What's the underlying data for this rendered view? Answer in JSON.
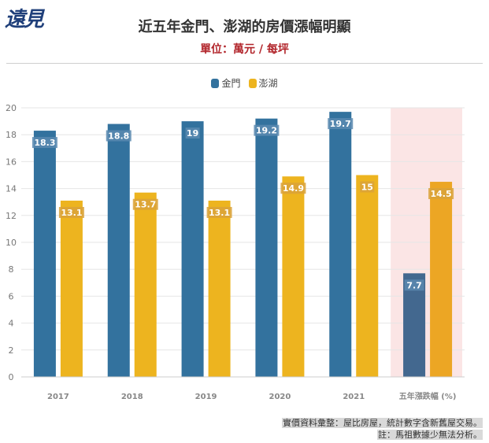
{
  "logo": {
    "text": "遠見"
  },
  "header": {
    "title": "近五年金門、澎湖的房價漲幅明顯",
    "subtitle": "單位：萬元 / 每坪"
  },
  "legend": [
    {
      "name": "金門",
      "color": "#33729e"
    },
    {
      "name": "澎湖",
      "color": "#edb41f"
    }
  ],
  "chart_data": {
    "type": "bar",
    "categories": [
      "2017",
      "2018",
      "2019",
      "2020",
      "2021",
      "五年漲跌幅 (%)"
    ],
    "series": [
      {
        "name": "金門",
        "values": [
          18.3,
          18.8,
          19,
          19.2,
          19.7,
          7.7
        ],
        "labels": [
          "18.3",
          "18.8",
          "19",
          "19.2",
          "19.7",
          "7.7"
        ],
        "color": "#33729e"
      },
      {
        "name": "澎湖",
        "values": [
          13.1,
          13.7,
          13.1,
          14.9,
          15,
          14.5
        ],
        "labels": [
          "13.1",
          "13.7",
          "13.1",
          "14.9",
          "15",
          "14.5"
        ],
        "color": "#edb41f"
      }
    ],
    "highlight_category": "五年漲跌幅 (%)",
    "highlight_colors": {
      "金門": "#43688f",
      "澎湖": "#eca624",
      "background": "#fbe5e5"
    },
    "ylim": [
      0,
      20
    ],
    "yticks": [
      "0",
      "2",
      "4",
      "6",
      "8",
      "10",
      "12",
      "14",
      "16",
      "18",
      "20"
    ],
    "grid": true,
    "legend_position": "top-center"
  },
  "footnote": {
    "line1": "實價資料彙整：屋比房屋，統計數字含新舊屋交易。",
    "line2": "註：馬祖數據少無法分析。"
  }
}
